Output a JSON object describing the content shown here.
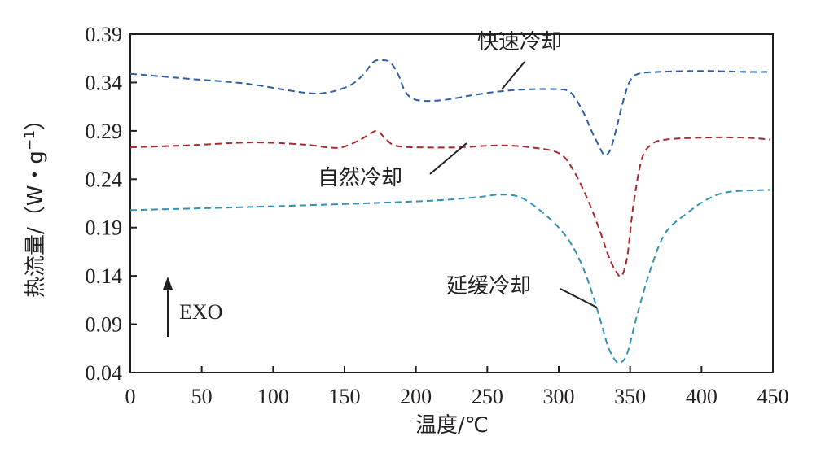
{
  "chart_data": {
    "type": "line",
    "xlabel": "温度/℃",
    "ylabel": "热流量/（W・g⁻¹）",
    "ylabel_parts": {
      "main": "热流量/（W・g",
      "sup": "−1",
      "close": "）"
    },
    "xlim": [
      0,
      450
    ],
    "ylim": [
      0.04,
      0.39
    ],
    "xticks": [
      0,
      50,
      100,
      150,
      200,
      250,
      300,
      350,
      400,
      450
    ],
    "xtick_labels": [
      "0",
      "50",
      "100",
      "150",
      "200",
      "250",
      "300",
      "350",
      "400",
      "450"
    ],
    "yticks": [
      0.04,
      0.09,
      0.14,
      0.19,
      0.24,
      0.29,
      0.34,
      0.39
    ],
    "ytick_labels": [
      "0.04",
      "0.09",
      "0.14",
      "0.19",
      "0.24",
      "0.29",
      "0.34",
      "0.39"
    ],
    "grid": false,
    "line_style": "dashed",
    "exo_label": "EXO",
    "series": [
      {
        "name": "快速冷却",
        "color": "#2e5ea8",
        "x": [
          0,
          40,
          80,
          110,
          125,
          135,
          145,
          155,
          163,
          170,
          175,
          182,
          188,
          192,
          197,
          205,
          220,
          240,
          260,
          280,
          300,
          307,
          312,
          318,
          323,
          328,
          332,
          336,
          340,
          345,
          350,
          356,
          370,
          400,
          430,
          448
        ],
        "y": [
          0.349,
          0.344,
          0.339,
          0.332,
          0.329,
          0.329,
          0.332,
          0.338,
          0.348,
          0.361,
          0.363,
          0.361,
          0.347,
          0.332,
          0.324,
          0.321,
          0.322,
          0.327,
          0.331,
          0.333,
          0.333,
          0.331,
          0.323,
          0.307,
          0.29,
          0.275,
          0.265,
          0.27,
          0.29,
          0.32,
          0.342,
          0.349,
          0.351,
          0.352,
          0.351,
          0.351
        ]
      },
      {
        "name": "自然冷却",
        "color": "#a8282d",
        "x": [
          0,
          40,
          85,
          120,
          138,
          148,
          160,
          168,
          173,
          178,
          185,
          200,
          230,
          258,
          280,
          300,
          310,
          320,
          328,
          335,
          340,
          344,
          348,
          352,
          358,
          365,
          375,
          400,
          430,
          448
        ],
        "y": [
          0.273,
          0.275,
          0.278,
          0.276,
          0.273,
          0.273,
          0.28,
          0.287,
          0.29,
          0.283,
          0.275,
          0.273,
          0.273,
          0.275,
          0.273,
          0.267,
          0.25,
          0.22,
          0.19,
          0.16,
          0.145,
          0.14,
          0.16,
          0.21,
          0.26,
          0.276,
          0.281,
          0.283,
          0.283,
          0.281
        ]
      },
      {
        "name": "延缓冷却",
        "color": "#2f93b5",
        "x": [
          0,
          100,
          200,
          240,
          258,
          272,
          285,
          300,
          310,
          318,
          325,
          330,
          335,
          340,
          343,
          348,
          355,
          365,
          375,
          390,
          405,
          420,
          448
        ],
        "y": [
          0.208,
          0.212,
          0.217,
          0.221,
          0.224,
          0.222,
          0.21,
          0.19,
          0.17,
          0.145,
          0.115,
          0.09,
          0.065,
          0.052,
          0.05,
          0.06,
          0.1,
          0.15,
          0.185,
          0.205,
          0.22,
          0.227,
          0.229
        ]
      }
    ],
    "annotations": [
      {
        "text": "快速冷却",
        "series": "快速冷却"
      },
      {
        "text": "自然冷却",
        "series": "自然冷却"
      },
      {
        "text": "延缓冷却",
        "series": "延缓冷却"
      }
    ]
  }
}
